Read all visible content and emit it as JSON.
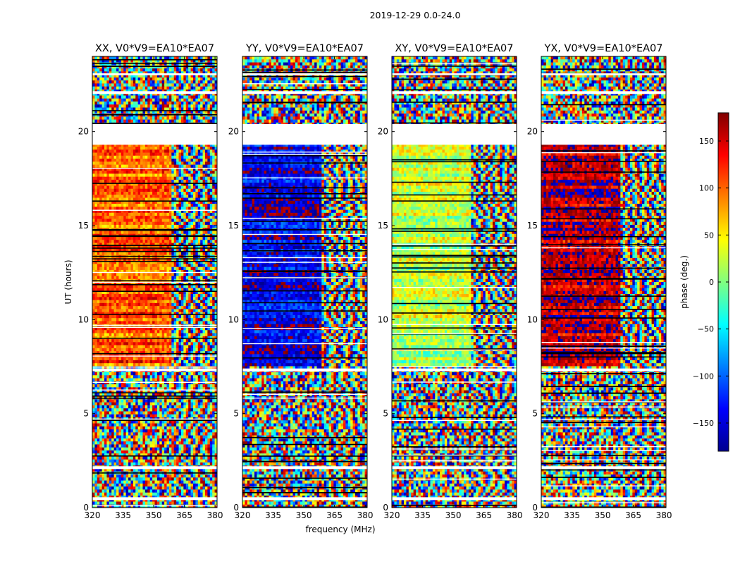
{
  "figure": {
    "suptitle": "2019-12-29 0.0-24.0",
    "xlabel": "frequency (MHz)",
    "ylabel": "UT (hours)"
  },
  "colorbar": {
    "label": "phase (deg.)",
    "range": [
      -180,
      180
    ],
    "ticks": [
      150,
      100,
      50,
      0,
      -50,
      -100,
      -150
    ],
    "tick_labels": [
      "150",
      "100",
      "50",
      "0",
      "−50",
      "−100",
      "−150"
    ],
    "colormap": [
      "#00008f",
      "#0000ff",
      "#0080ff",
      "#00ffff",
      "#80ff80",
      "#ffff00",
      "#ff8000",
      "#ff0000",
      "#800000"
    ]
  },
  "chart_data": [
    {
      "type": "heatmap",
      "title": "XX, V0*V9=EA10*EA07",
      "xlim": [
        320,
        381
      ],
      "ylim": [
        0,
        24
      ],
      "xticks": [
        320,
        335,
        350,
        365,
        380
      ],
      "yticks": [
        0,
        5,
        10,
        15,
        20
      ],
      "typical_phase_deg": 105,
      "gaps_ut": [
        [
          0.4,
          0.55
        ],
        [
          2.05,
          2.2
        ],
        [
          7.25,
          7.4
        ],
        [
          19.3,
          20.4
        ],
        [
          22.0,
          22.15
        ],
        [
          23.0,
          23.1
        ]
      ]
    },
    {
      "type": "heatmap",
      "title": "YY, V0*V9=EA10*EA07",
      "xlim": [
        320,
        381
      ],
      "ylim": [
        0,
        24
      ],
      "xticks": [
        320,
        335,
        350,
        365,
        380
      ],
      "yticks": [
        0,
        5,
        10,
        15,
        20
      ],
      "typical_phase_deg": -145,
      "gaps_ut": [
        [
          0.4,
          0.55
        ],
        [
          2.05,
          2.2
        ],
        [
          7.25,
          7.4
        ],
        [
          19.3,
          20.4
        ],
        [
          22.0,
          22.15
        ],
        [
          23.0,
          23.1
        ]
      ]
    },
    {
      "type": "heatmap",
      "title": "XY, V0*V9=EA10*EA07",
      "xlim": [
        320,
        381
      ],
      "ylim": [
        0,
        24
      ],
      "xticks": [
        320,
        335,
        350,
        365,
        380
      ],
      "yticks": [
        0,
        5,
        10,
        15,
        20
      ],
      "typical_phase_deg": 20,
      "gaps_ut": [
        [
          0.4,
          0.55
        ],
        [
          2.05,
          2.2
        ],
        [
          7.25,
          7.4
        ],
        [
          19.3,
          20.4
        ],
        [
          22.0,
          22.15
        ],
        [
          23.0,
          23.1
        ]
      ]
    },
    {
      "type": "heatmap",
      "title": "YX, V0*V9=EA10*EA07",
      "xlim": [
        320,
        381
      ],
      "ylim": [
        0,
        24
      ],
      "xticks": [
        320,
        335,
        350,
        365,
        380
      ],
      "yticks": [
        0,
        5,
        10,
        15,
        20
      ],
      "typical_phase_deg": 160,
      "gaps_ut": [
        [
          0.4,
          0.55
        ],
        [
          2.05,
          2.2
        ],
        [
          7.25,
          7.4
        ],
        [
          19.3,
          20.4
        ],
        [
          22.0,
          22.15
        ],
        [
          23.0,
          23.1
        ]
      ]
    }
  ]
}
